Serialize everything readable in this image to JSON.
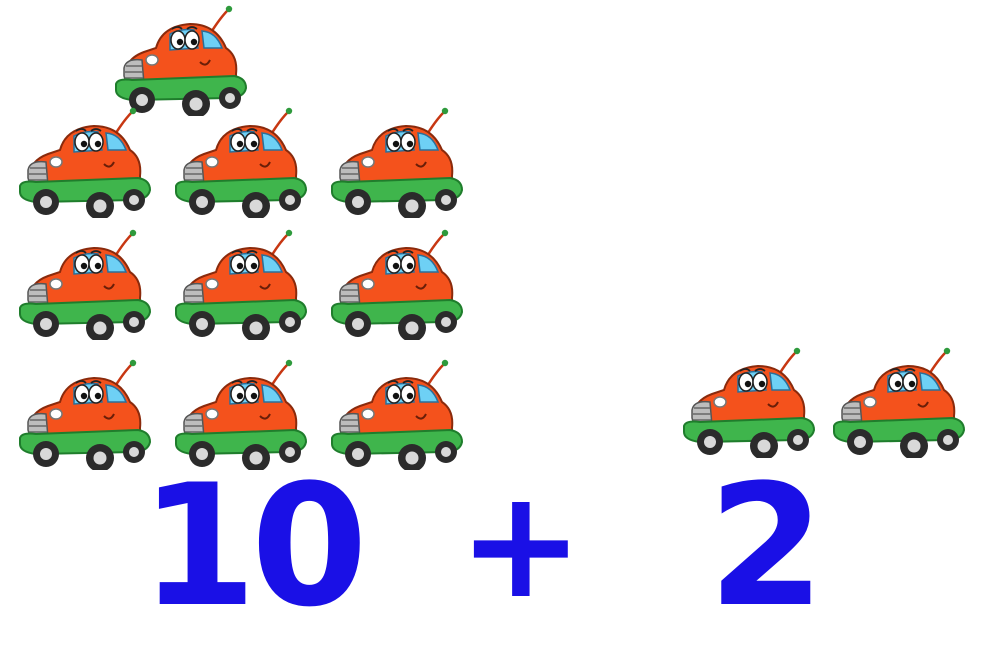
{
  "equation": {
    "left_number": "10",
    "operator": "+",
    "right_number": "2"
  },
  "groups": {
    "left_count": 10,
    "right_count": 2
  },
  "colors": {
    "number": "#1a10e6",
    "car_body": "#f4521c",
    "car_body_shadow": "#c73712",
    "car_bumper": "#3fb54c",
    "car_bumper_dark": "#1f7d2c",
    "car_window": "#6ed0f5",
    "tire": "#2b2b2b"
  },
  "icons": {
    "car": "cartoon-car-icon"
  }
}
